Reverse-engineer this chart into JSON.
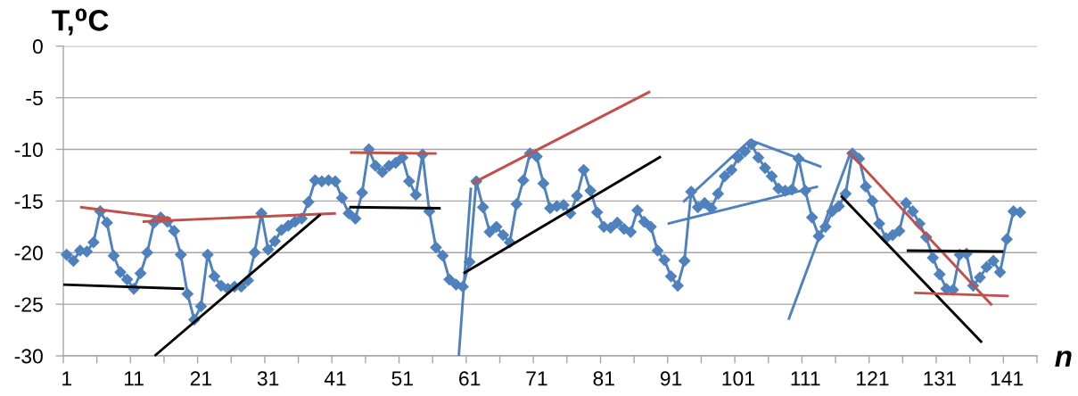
{
  "chart_data": {
    "type": "line",
    "xlabel": "n",
    "ylabel": "T,⁰C",
    "xlim": [
      0.5,
      145.5
    ],
    "ylim": [
      -30,
      0
    ],
    "xticks": [
      {
        "value": 0.5,
        "label": null
      },
      1,
      {
        "value": 5.5,
        "label": null
      },
      {
        "value": 10.5,
        "label": null
      },
      11,
      {
        "value": 15.5,
        "label": null
      },
      {
        "value": 20.5,
        "label": null
      },
      21,
      {
        "value": 25.5,
        "label": null
      },
      {
        "value": 30.5,
        "label": null
      },
      31,
      {
        "value": 35.5,
        "label": null
      },
      {
        "value": 40.5,
        "label": null
      },
      41,
      {
        "value": 45.5,
        "label": null
      },
      {
        "value": 50.5,
        "label": null
      },
      51,
      {
        "value": 55.5,
        "label": null
      },
      {
        "value": 60.5,
        "label": null
      },
      61,
      {
        "value": 65.5,
        "label": null
      },
      {
        "value": 70.5,
        "label": null
      },
      71,
      {
        "value": 75.5,
        "label": null
      },
      {
        "value": 80.5,
        "label": null
      },
      81,
      {
        "value": 85.5,
        "label": null
      },
      {
        "value": 90.5,
        "label": null
      },
      91,
      {
        "value": 95.5,
        "label": null
      },
      {
        "value": 100.5,
        "label": null
      },
      101,
      {
        "value": 105.5,
        "label": null
      },
      {
        "value": 110.5,
        "label": null
      },
      111,
      {
        "value": 115.5,
        "label": null
      },
      {
        "value": 120.5,
        "label": null
      },
      121,
      {
        "value": 125.5,
        "label": null
      },
      {
        "value": 130.5,
        "label": null
      },
      131,
      {
        "value": 135.5,
        "label": null
      },
      {
        "value": 140.5,
        "label": null
      },
      141,
      {
        "value": 145.5,
        "label": null
      }
    ],
    "yticks": [
      0,
      -5,
      -10,
      -15,
      -20,
      -25,
      -30
    ],
    "grid": "y",
    "marker": "diamond",
    "line_style": "solid",
    "x": [
      1,
      2,
      3,
      4,
      5,
      6,
      7,
      8,
      9,
      10,
      11,
      12,
      13,
      14,
      15,
      16,
      17,
      18,
      19,
      20,
      21,
      22,
      23,
      24,
      25,
      26,
      27,
      28,
      29,
      30,
      31,
      32,
      33,
      34,
      35,
      36,
      37,
      38,
      39,
      40,
      41,
      42,
      43,
      44,
      45,
      46,
      47,
      48,
      49,
      50,
      51,
      52,
      53,
      54,
      55,
      56,
      57,
      58,
      59,
      60,
      61,
      62,
      63,
      64,
      65,
      66,
      67,
      68,
      69,
      70,
      71,
      72,
      73,
      74,
      75,
      76,
      77,
      78,
      79,
      80,
      81,
      82,
      83,
      84,
      85,
      86,
      87,
      88,
      89,
      90,
      91,
      92,
      93,
      94,
      95,
      96,
      97,
      98,
      99,
      100,
      101,
      102,
      103,
      104,
      105,
      106,
      107,
      108,
      109,
      110,
      111,
      112,
      113,
      114,
      115,
      116,
      117,
      118,
      119,
      120,
      121,
      122,
      123,
      124,
      125,
      126,
      127,
      128,
      129,
      130,
      131,
      132,
      133,
      134,
      135,
      136,
      137,
      138,
      139,
      140,
      141,
      142,
      143
    ],
    "series": [
      {
        "color": "#4f81bd",
        "values": [
          -20.2,
          -20.8,
          -19.8,
          -19.9,
          -19.0,
          -16.0,
          -17.1,
          -20.3,
          -21.9,
          -22.6,
          -23.5,
          -22.0,
          -20.0,
          -17.1,
          -16.6,
          -17.0,
          -17.9,
          -20.2,
          -24.0,
          -26.5,
          -25.2,
          -20.2,
          -22.3,
          -23.2,
          -23.5,
          -23.3,
          -23.3,
          -22.7,
          -20.0,
          -16.2,
          -19.7,
          -18.9,
          -17.8,
          -17.4,
          -17.0,
          -16.7,
          -15.1,
          -13.0,
          -13.1,
          -13.0,
          -13.1,
          -14.7,
          -16.2,
          -16.7,
          -14.2,
          -10.0,
          -11.6,
          -12.2,
          -11.6,
          -11.3,
          -10.8,
          -13.1,
          -14.4,
          -10.5,
          -16.0,
          -19.5,
          -20.3,
          -22.6,
          -23.1,
          -23.3,
          -20.9,
          -13.1,
          -15.6,
          -18.0,
          -17.5,
          -18.3,
          -19.0,
          -15.3,
          -13.0,
          -10.4,
          -10.7,
          -13.3,
          -15.7,
          -15.5,
          -15.4,
          -16.2,
          -14.5,
          -12.0,
          -14.0,
          -16.1,
          -17.5,
          -17.6,
          -17.1,
          -17.7,
          -18.0,
          -15.9,
          -17.0,
          -17.5,
          -19.8,
          -20.7,
          -22.3,
          -23.2,
          -20.8,
          -14.1,
          -15.6,
          -15.2,
          -15.7,
          -14.3,
          -12.6,
          -12.0,
          -10.8,
          -10.2,
          -9.5,
          -10.8,
          -11.8,
          -12.6,
          -13.8,
          -14.0,
          -13.9,
          -10.9,
          -14.0,
          -16.6,
          -18.4,
          -17.5,
          -16.0,
          -15.5,
          -14.3,
          -10.4,
          -10.9,
          -13.6,
          -15.0,
          -17.2,
          -18.6,
          -18.3,
          -17.9,
          -15.2,
          -16.0,
          -17.2,
          -18.5,
          -20.5,
          -22.1,
          -23.5,
          -23.6,
          -20.2,
          -20.1,
          -23.2,
          -22.4,
          -21.4,
          -20.8,
          -21.9,
          -18.7,
          -16.0,
          -16.1
        ]
      },
      {
        "color": "#c0504d",
        "marker": "none",
        "x": [
          3.0,
          16.5
        ],
        "values": [
          -15.6,
          -16.7
        ]
      },
      {
        "color": "#c0504d",
        "marker": "none",
        "x": [
          12.3,
          41.1
        ],
        "values": [
          -17.0,
          -16.2
        ]
      },
      {
        "color": "#000000",
        "marker": "none",
        "x": [
          0.5,
          18.5
        ],
        "values": [
          -23.1,
          -23.5
        ]
      },
      {
        "color": "#000000",
        "marker": "none",
        "x": [
          14.1,
          38.8
        ],
        "values": [
          -30.0,
          -16.3
        ]
      },
      {
        "color": "#c0504d",
        "marker": "none",
        "x": [
          43.2,
          56.1
        ],
        "values": [
          -10.3,
          -10.4
        ]
      },
      {
        "color": "#000000",
        "marker": "none",
        "x": [
          43.1,
          56.7
        ],
        "values": [
          -15.6,
          -15.7
        ]
      },
      {
        "color": "#4f81bd",
        "marker": "none",
        "x": [
          59.4,
          61.2
        ],
        "values": [
          -30.0,
          -13.7
        ]
      },
      {
        "color": "#c0504d",
        "marker": "none",
        "x": [
          61.4,
          87.9
        ],
        "values": [
          -13.3,
          -4.4
        ]
      },
      {
        "color": "#000000",
        "marker": "none",
        "x": [
          60.1,
          89.5
        ],
        "values": [
          -22.0,
          -10.7
        ]
      },
      {
        "color": "#4f81bd",
        "marker": "none",
        "x": [
          92.8,
          102.8,
          113.4
        ],
        "values": [
          -15.1,
          -9.1,
          -11.7
        ]
      },
      {
        "color": "#4f81bd",
        "marker": "none",
        "x": [
          90.5,
          112.9
        ],
        "values": [
          -17.2,
          -13.6
        ]
      },
      {
        "color": "#4f81bd",
        "marker": "none",
        "x": [
          108.5,
          117.8
        ],
        "values": [
          -26.5,
          -10.2
        ]
      },
      {
        "color": "#c0504d",
        "marker": "none",
        "x": [
          117.4,
          138.8
        ],
        "values": [
          -10.2,
          -25.1
        ]
      },
      {
        "color": "#000000",
        "marker": "none",
        "x": [
          116.3,
          137.3
        ],
        "values": [
          -14.5,
          -28.7
        ]
      },
      {
        "color": "#000000",
        "marker": "none",
        "x": [
          126.1,
          140.5
        ],
        "values": [
          -19.8,
          -19.9
        ]
      },
      {
        "color": "#c0504d",
        "marker": "none",
        "x": [
          127.2,
          141.3
        ],
        "values": [
          -23.9,
          -24.2
        ]
      }
    ]
  }
}
